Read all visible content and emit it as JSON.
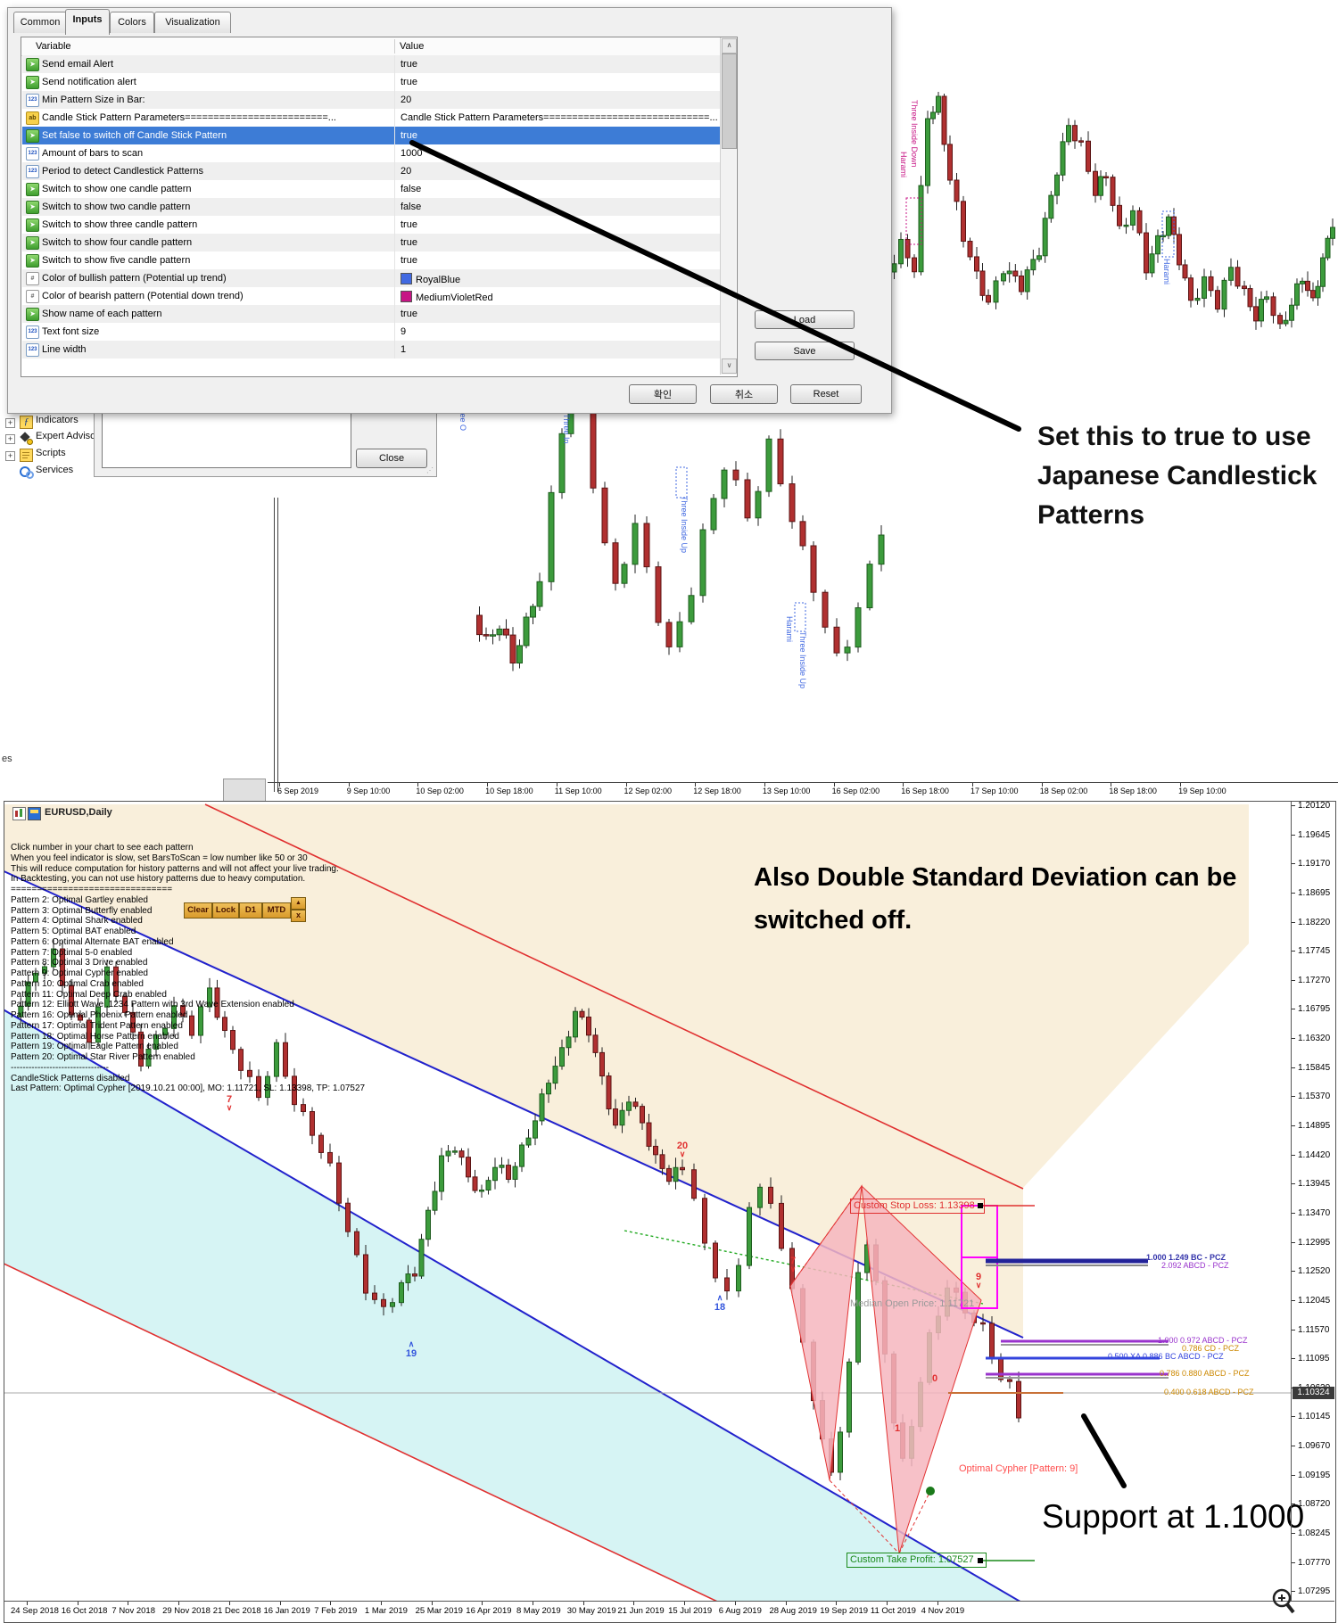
{
  "dialog": {
    "tabs": [
      "Common",
      "Inputs",
      "Colors",
      "Visualization"
    ],
    "active_tab": "Inputs",
    "columns": [
      "Variable",
      "Value"
    ],
    "rows": [
      {
        "icon": "bool",
        "name": "Send email Alert",
        "value": "true",
        "selected": false
      },
      {
        "icon": "bool",
        "name": "Send notification alert",
        "value": "true",
        "selected": false
      },
      {
        "icon": "int",
        "name": "Min Pattern Size in Bar:",
        "value": "20",
        "selected": false
      },
      {
        "icon": "str",
        "name": "Candle Stick Pattern Parameters=========================...",
        "value": "Candle Stick Pattern Parameters=============================...",
        "selected": false
      },
      {
        "icon": "bool",
        "name": "Set false to switch off Candle Stick Pattern",
        "value": "true",
        "selected": true
      },
      {
        "icon": "int",
        "name": "Amount of bars to scan",
        "value": "1000",
        "selected": false
      },
      {
        "icon": "int",
        "name": "Period to detect Candlestick Patterns",
        "value": "20",
        "selected": false
      },
      {
        "icon": "bool",
        "name": "Switch to show one candle pattern",
        "value": "false",
        "selected": false
      },
      {
        "icon": "bool",
        "name": "Switch to show two candle pattern",
        "value": "false",
        "selected": false
      },
      {
        "icon": "bool",
        "name": "Switch to show three candle pattern",
        "value": "true",
        "selected": false
      },
      {
        "icon": "bool",
        "name": "Switch to show four candle pattern",
        "value": "true",
        "selected": false
      },
      {
        "icon": "bool",
        "name": "Switch to show five candle pattern",
        "value": "true",
        "selected": false
      },
      {
        "icon": "color",
        "name": "Color of bullish pattern (Potential up trend)",
        "value": "RoyalBlue",
        "swatch": "#4169E1",
        "selected": false
      },
      {
        "icon": "color",
        "name": "Color of bearish pattern (Potential down trend)",
        "value": "MediumVioletRed",
        "swatch": "#C71585",
        "selected": false
      },
      {
        "icon": "bool",
        "name": "Show name of each pattern",
        "value": "true",
        "selected": false
      },
      {
        "icon": "int",
        "name": "Text font size",
        "value": "9",
        "selected": false
      },
      {
        "icon": "int",
        "name": "Line width",
        "value": "1",
        "selected": false
      }
    ],
    "buttons": {
      "load": "Load",
      "save": "Save",
      "ok": "확인",
      "cancel": "취소",
      "reset": "Reset"
    }
  },
  "navigator": {
    "items": [
      {
        "label": "Indicators",
        "icon": "function-icon"
      },
      {
        "label": "Expert Advisors",
        "icon": "expert-advisor-icon"
      },
      {
        "label": "Scripts",
        "icon": "script-icon"
      },
      {
        "label": "Services",
        "icon": "services-gear-icon"
      }
    ]
  },
  "subdialog": {
    "close_label": "Close"
  },
  "top_annotation": {
    "lines": [
      "Set this to true to use",
      "Japanese Candlestick",
      "Patterns"
    ]
  },
  "top_section": {
    "cut_text": "es",
    "vertical_labels": [
      {
        "text": "Three Inside Down",
        "color": "#C71585"
      },
      {
        "text": "Harami",
        "color": "#C71585"
      },
      {
        "text": "Harami",
        "color": "#4169E1"
      },
      {
        "text": "Three O",
        "color": "#4169E1"
      },
      {
        "text": "Three In",
        "color": "#4169E1"
      },
      {
        "text": "Three Inside Up",
        "color": "#4169E1"
      },
      {
        "text": "Harami",
        "color": "#4169E1"
      },
      {
        "text": "Three Inside Up",
        "color": "#4169E1"
      }
    ],
    "timeline": [
      "6 Sep 2019",
      "9 Sep 10:00",
      "10 Sep 02:00",
      "10 Sep 18:00",
      "11 Sep 10:00",
      "12 Sep 02:00",
      "12 Sep 18:00",
      "13 Sep 10:00",
      "16 Sep 02:00",
      "16 Sep 18:00",
      "17 Sep 10:00",
      "18 Sep 02:00",
      "18 Sep 18:00",
      "19 Sep 10:00"
    ]
  },
  "bottom_chart": {
    "title": "EURUSD,Daily",
    "info_lines": [
      "Click number in your chart to see each pattern",
      "When you feel indicator is slow, set BarsToScan = low number like 50 or 30",
      "This will reduce computation for history patterns and will not affect your live trading.",
      "In Backtesting, you can not use history patterns due to heavy computation.",
      "===============================",
      "Pattern 2: Optimal Gartley enabled",
      "Pattern 3: Optimal Butterfly enabled",
      "Pattern 4: Optimal Shark enabled",
      "Pattern 5: Optimal BAT enabled",
      "Pattern 6: Optimal Alternate BAT enabled",
      "Pattern 7: Optimal 5-0 enabled",
      "Pattern 8: Optimal 3 Drive enabled",
      "Pattern 9: Optimal Cypher enabled",
      "Pattern 10: Optimal Crab enabled",
      "Pattern 11: Optimal Deep Crab enabled",
      "Pattern 12: Elliott Wave .1234 Pattern with 3rd Wave Extension enabled",
      "Pattern 16: Optimal Phoenix Pattern enabled",
      "Pattern 17: Optimal Trident Pattern enabled",
      "Pattern 18: Optimal Horse Pattern enabled",
      "Pattern 19: Optimal Eagle Pattern enabled",
      "Pattern 20: Optimal Star River Pattern enabled",
      "---------------------------------",
      "CandleStick Patterns disabled",
      "Last Pattern: Optimal Cypher [2019.10.21 00:00], MO: 1.11721, SL: 1.13398, TP: 1.07527"
    ],
    "toolbar": [
      "Clear",
      "Lock",
      "D1",
      "MTD",
      "▲",
      "x"
    ],
    "annotations": {
      "deviation_lines": [
        "Also Double Standard Deviation can be",
        "switched off."
      ],
      "support": "Support at 1.1000"
    },
    "stop_loss_label": "Custom Stop Loss: 1.13398",
    "take_profit_label": "Custom Take Profit: 1.07527",
    "median_label": "Median Open Price: 1.11721",
    "cypher_label": "Optimal Cypher [Pattern: 9]",
    "pcz_labels": [
      {
        "text": "1.000 1.249 BC - PCZ",
        "color": "#3333aa"
      },
      {
        "text": "2.092 ABCD - PCZ",
        "color": "#9933cc"
      },
      {
        "text": "1.000 0.972 ABCD - PCZ",
        "color": "#9933cc"
      },
      {
        "text": "0.786 CD - PCZ",
        "color": "#cc8800"
      },
      {
        "text": "0.500 XA 0.886 BC ABCD - PCZ",
        "color": "#3344dd"
      },
      {
        "text": "0.786 0.880 ABCD - PCZ",
        "color": "#cc8800"
      },
      {
        "text": "0.400 0.618 ABCD - PCZ",
        "color": "#cc8800"
      }
    ],
    "markers": [
      {
        "t": "7",
        "c": "#e03030",
        "d": "dn"
      },
      {
        "t": "20",
        "c": "#e03030",
        "d": "dn"
      },
      {
        "t": "7",
        "c": "#e03030",
        "d": "dn"
      },
      {
        "t": "9",
        "c": "#e03030",
        "d": "dn"
      },
      {
        "t": "19",
        "c": "#3355dd",
        "d": "up"
      },
      {
        "t": "18",
        "c": "#3355dd",
        "d": "up"
      },
      {
        "t": "0",
        "c": "#e03030",
        "d": "no"
      },
      {
        "t": "1",
        "c": "#e03030",
        "d": "no"
      }
    ],
    "price_axis": {
      "start": 1.2012,
      "step": 0.00475,
      "count": 28,
      "current": "1.10324"
    },
    "date_axis": [
      "24 Sep 2018",
      "16 Oct 2018",
      "7 Nov 2018",
      "29 Nov 2018",
      "21 Dec 2018",
      "16 Jan 2019",
      "7 Feb 2019",
      "1 Mar 2019",
      "25 Mar 2019",
      "16 Apr 2019",
      "8 May 2019",
      "30 May 2019",
      "21 Jun 2019",
      "15 Jul 2019",
      "6 Aug 2019",
      "28 Aug 2019",
      "19 Sep 2019",
      "11 Oct 2019",
      "4 Nov 2019"
    ],
    "colors": {
      "bullish": "#3c9b3c",
      "bearish": "#b03030",
      "beige": "#f9efdb",
      "cyan": "#d6f4f4",
      "channel_red": "#e03030",
      "channel_blue": "#2222cc",
      "magenta": "#ff00ff"
    }
  }
}
